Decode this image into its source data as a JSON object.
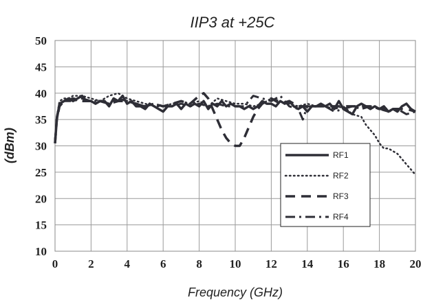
{
  "chart_data": {
    "type": "line",
    "title": "IIP3 at +25C",
    "xlabel": "Frequency (GHz)",
    "ylabel": "(dBm)",
    "xlim": [
      0,
      20
    ],
    "ylim": [
      10,
      50
    ],
    "x_ticks": [
      "0",
      "2",
      "4",
      "6",
      "8",
      "10",
      "12",
      "14",
      "16",
      "18",
      "20"
    ],
    "y_ticks": [
      "10",
      "15",
      "20",
      "25",
      "30",
      "35",
      "40",
      "45",
      "50"
    ],
    "grid": true,
    "legend_position": "lower-right",
    "series": [
      {
        "name": "RF1",
        "style": "solid",
        "x": [
          0,
          0.1,
          0.25,
          0.5,
          0.75,
          1,
          1.25,
          1.5,
          1.75,
          2,
          2.25,
          2.5,
          2.75,
          3,
          3.25,
          3.5,
          3.75,
          4,
          4.25,
          4.5,
          4.75,
          5,
          5.25,
          5.5,
          5.75,
          6,
          6.25,
          6.5,
          6.75,
          7,
          7.25,
          7.5,
          7.75,
          8,
          8.25,
          8.5,
          8.75,
          9,
          9.25,
          9.5,
          9.75,
          10,
          10.25,
          10.5,
          10.75,
          11,
          11.25,
          11.5,
          11.75,
          12,
          12.25,
          12.5,
          12.75,
          13,
          13.25,
          13.5,
          13.75,
          14,
          14.25,
          14.5,
          14.75,
          15,
          15.25,
          15.5,
          15.75,
          16,
          16.25,
          16.5,
          16.75,
          17,
          17.25,
          17.5,
          17.75,
          18,
          18.25,
          18.5,
          18.75,
          19,
          19.25,
          19.5,
          19.75,
          20
        ],
        "values": [
          30.5,
          35,
          38,
          38.5,
          39,
          38.5,
          39,
          39.5,
          38.5,
          38.5,
          38,
          38.5,
          38.5,
          37.5,
          39,
          38.5,
          39.5,
          38,
          38.5,
          37.5,
          37.5,
          37,
          38,
          37.5,
          37,
          36.5,
          37.5,
          37.5,
          38,
          37,
          38,
          37.5,
          38,
          37.5,
          38.5,
          37,
          38,
          37.5,
          38.5,
          37.5,
          38,
          37.5,
          37.5,
          37,
          37.5,
          37,
          37.5,
          38.5,
          38,
          38,
          37.5,
          38.5,
          38,
          38.5,
          37.5,
          37,
          37.5,
          36.5,
          37.5,
          37.5,
          38,
          37.5,
          38,
          37,
          38.5,
          37,
          36.5,
          36,
          37.5,
          38,
          37.5,
          37,
          37.5,
          37,
          37.5,
          36.5,
          37,
          36.5,
          37.5,
          38,
          37,
          36.5
        ]
      },
      {
        "name": "RF2",
        "style": "dotted",
        "x": [
          0,
          0.1,
          0.25,
          0.5,
          0.75,
          1,
          1.5,
          2,
          2.5,
          3,
          3.5,
          4,
          4.5,
          5,
          5.5,
          6,
          6.5,
          7,
          7.5,
          8,
          8.5,
          9,
          9.5,
          10,
          10.5,
          11,
          11.5,
          12,
          12.5,
          13,
          13.5,
          14,
          14.5,
          15,
          15.5,
          16,
          16.5,
          17,
          17.25,
          17.5,
          17.75,
          18,
          18.25,
          18.5,
          18.75,
          19,
          19.25,
          19.5,
          19.75,
          20
        ],
        "values": [
          31,
          35.5,
          38.5,
          39,
          39,
          39.5,
          39.5,
          39,
          38.5,
          39.5,
          40,
          39,
          38.5,
          38,
          37.5,
          37.5,
          38,
          38.5,
          38,
          38.5,
          37.5,
          39,
          38.5,
          38,
          38,
          37.5,
          38,
          39,
          38.5,
          38,
          37.5,
          38,
          37.5,
          37.5,
          37,
          37.5,
          36,
          35.5,
          34,
          33,
          32,
          30.5,
          29.5,
          29.5,
          29,
          28.5,
          27.5,
          26.5,
          25.5,
          24.5
        ]
      },
      {
        "name": "RF3",
        "style": "dashed",
        "x": [
          0,
          0.1,
          0.25,
          0.5,
          1,
          1.5,
          2,
          2.5,
          3,
          3.5,
          4,
          4.5,
          5,
          5.5,
          6,
          6.5,
          7,
          7.5,
          8,
          8.25,
          8.5,
          8.75,
          9,
          9.25,
          9.5,
          9.75,
          10,
          10.25,
          10.5,
          10.75,
          11,
          11.25,
          11.5,
          11.75,
          12,
          12.5,
          13,
          13.5,
          14,
          14.5,
          15,
          15.5,
          16,
          16.5,
          17,
          17.5,
          18,
          18.5,
          19,
          19.5,
          20
        ],
        "values": [
          30.5,
          35,
          37.5,
          38.5,
          39,
          38.5,
          38.5,
          38.5,
          38,
          38.5,
          38.5,
          38,
          37.5,
          38,
          37.5,
          38,
          38.5,
          38,
          39.5,
          40,
          39,
          37,
          35,
          33,
          31.5,
          30.5,
          30,
          30,
          31.5,
          33.5,
          35.5,
          37,
          38,
          38.5,
          39,
          38,
          38.5,
          37.5,
          37.5,
          37.5,
          37.5,
          37.5,
          37.5,
          37.5,
          37.5,
          37.5,
          37,
          37,
          37,
          37,
          36.5
        ]
      },
      {
        "name": "RF4",
        "style": "dash-dot",
        "x": [
          0,
          0.1,
          0.25,
          0.5,
          1,
          1.5,
          2,
          2.5,
          3,
          3.5,
          4,
          4.5,
          5,
          5.5,
          6,
          6.5,
          7,
          7.5,
          8,
          8.5,
          9,
          9.5,
          10,
          10.5,
          11,
          11.5,
          12,
          12.5,
          13,
          13.5,
          13.75,
          14,
          14.5,
          15,
          15.5,
          16,
          16.5,
          17,
          17.5,
          18,
          18.5,
          19,
          19.5,
          20
        ],
        "values": [
          31,
          35.5,
          38,
          38.5,
          38.5,
          39,
          38.5,
          38.5,
          38,
          39,
          38.5,
          38,
          37.5,
          38,
          37.5,
          37.5,
          38,
          37.5,
          38,
          37.5,
          38,
          37.5,
          37.5,
          37.5,
          39.5,
          39,
          38.5,
          39.5,
          37.5,
          37,
          35,
          37.5,
          37.5,
          37.5,
          36.5,
          37,
          37.5,
          37,
          37.5,
          37,
          36.5,
          37,
          36,
          36.5
        ]
      }
    ]
  }
}
